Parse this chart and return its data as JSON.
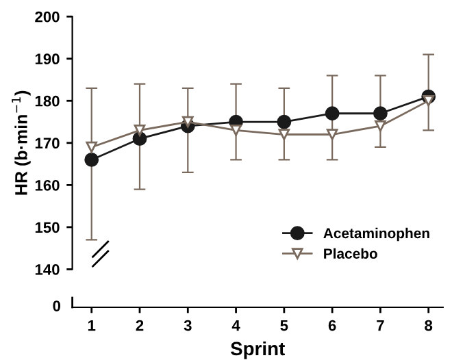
{
  "chart_data": {
    "type": "line",
    "xlabel": "Sprint",
    "ylabel": "HR (b·min$^{−1}$)",
    "x": [
      1,
      2,
      3,
      4,
      5,
      6,
      7,
      8
    ],
    "xlim": [
      0.6,
      8.3
    ],
    "xticks": [
      1,
      2,
      3,
      4,
      5,
      6,
      7,
      8
    ],
    "ylim": [
      140,
      200
    ],
    "yticks": [
      140,
      150,
      160,
      170,
      180,
      190,
      200
    ],
    "annotations": [
      "0"
    ],
    "legend": "bottom right",
    "grid": false,
    "line_style": "solid",
    "series": [
      {
        "name": "Acetaminophen",
        "color": "#1a1a1a",
        "marker": "circle",
        "values": [
          166,
          171,
          174,
          175,
          175,
          177,
          177,
          181
        ],
        "errors": [
          [
            147,
            183
          ],
          [
            159,
            184
          ],
          [
            163,
            183
          ],
          [
            166,
            184
          ],
          [
            166,
            183
          ],
          [
            166,
            186
          ],
          [
            169,
            186
          ],
          [
            173,
            191
          ]
        ]
      },
      {
        "name": "Placebo",
        "color": "#7a6a5e",
        "marker": "triangle",
        "values": [
          169,
          173,
          175,
          173,
          172,
          172,
          174,
          180
        ]
      }
    ]
  }
}
